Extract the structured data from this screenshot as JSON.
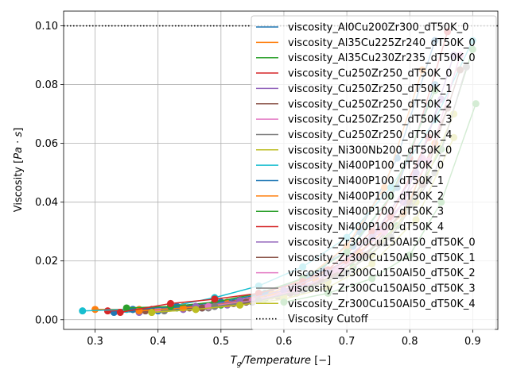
{
  "chart_data": {
    "type": "line",
    "xlabel": "T_g/Temperature [−]",
    "ylabel": "Viscosity [Pa·s]",
    "xlim": [
      0.25,
      0.94
    ],
    "ylim": [
      -0.0033,
      0.105
    ],
    "xticks": [
      "0.3",
      "0.4",
      "0.5",
      "0.6",
      "0.7",
      "0.8",
      "0.9"
    ],
    "xtick_values": [
      0.3,
      0.4,
      0.5,
      0.6,
      0.7,
      0.8,
      0.9
    ],
    "yticks": [
      "0.00",
      "0.02",
      "0.04",
      "0.06",
      "0.08",
      "0.10"
    ],
    "ytick_values": [
      0.0,
      0.02,
      0.04,
      0.06,
      0.08,
      0.1
    ],
    "grid": true,
    "legend_position": "right",
    "cutoff": {
      "name": "Viscosity Cutoff",
      "value": 0.1,
      "style": "dotted",
      "color": "#000000"
    },
    "series": [
      {
        "name": "viscosity_Al0Cu200Zr300_dT50K_0",
        "color": "#1f77b4",
        "x": [
          0.33,
          0.4,
          0.47,
          0.54,
          0.6,
          0.66,
          0.72,
          0.78,
          0.84
        ],
        "y": [
          0.0025,
          0.003,
          0.004,
          0.006,
          0.01,
          0.017,
          0.03,
          0.055,
          0.095
        ]
      },
      {
        "name": "viscosity_Al35Cu225Zr240_dT50K_0",
        "color": "#ff7f0e",
        "x": [
          0.3,
          0.37,
          0.44,
          0.51,
          0.58,
          0.64,
          0.7,
          0.76,
          0.82
        ],
        "y": [
          0.0035,
          0.0035,
          0.0045,
          0.006,
          0.009,
          0.015,
          0.025,
          0.045,
          0.085
        ]
      },
      {
        "name": "viscosity_Al35Cu230Zr235_dT50K_0",
        "color": "#2ca02c",
        "x": [
          0.36,
          0.43,
          0.5,
          0.57,
          0.64,
          0.71,
          0.78,
          0.85,
          0.9
        ],
        "y": [
          0.0035,
          0.004,
          0.005,
          0.007,
          0.011,
          0.018,
          0.032,
          0.058,
          0.092
        ]
      },
      {
        "name": "viscosity_Cu250Zr250_dT50K_0",
        "color": "#d62728",
        "x": [
          0.32,
          0.39,
          0.46,
          0.53,
          0.6,
          0.67,
          0.74,
          0.8,
          0.86
        ],
        "y": [
          0.003,
          0.0035,
          0.0045,
          0.0065,
          0.01,
          0.017,
          0.03,
          0.055,
          0.098
        ]
      },
      {
        "name": "viscosity_Cu250Zr250_dT50K_1",
        "color": "#9467bd",
        "x": [
          0.37,
          0.44,
          0.51,
          0.58,
          0.65,
          0.72,
          0.79,
          0.85
        ],
        "y": [
          0.0025,
          0.0035,
          0.005,
          0.008,
          0.013,
          0.022,
          0.04,
          0.075
        ]
      },
      {
        "name": "viscosity_Cu250Zr250_dT50K_2",
        "color": "#8c564b",
        "x": [
          0.38,
          0.45,
          0.52,
          0.59,
          0.66,
          0.73,
          0.8,
          0.86
        ],
        "y": [
          0.003,
          0.004,
          0.0055,
          0.008,
          0.013,
          0.022,
          0.04,
          0.072
        ]
      },
      {
        "name": "viscosity_Cu250Zr250_dT50K_3",
        "color": "#e377c2",
        "x": [
          0.4,
          0.47,
          0.54,
          0.61,
          0.68,
          0.75,
          0.82
        ],
        "y": [
          0.0035,
          0.0045,
          0.0065,
          0.01,
          0.017,
          0.03,
          0.055
        ]
      },
      {
        "name": "viscosity_Cu250Zr250_dT50K_4",
        "color": "#7f7f7f",
        "x": [
          0.41,
          0.48,
          0.55,
          0.62,
          0.69,
          0.76,
          0.83
        ],
        "y": [
          0.003,
          0.004,
          0.006,
          0.009,
          0.015,
          0.026,
          0.048
        ]
      },
      {
        "name": "viscosity_Ni300Nb200_dT50K_0",
        "color": "#bcbd22",
        "x": [
          0.39,
          0.46,
          0.53,
          0.6,
          0.67,
          0.74,
          0.81,
          0.87
        ],
        "y": [
          0.0025,
          0.0035,
          0.005,
          0.008,
          0.013,
          0.022,
          0.04,
          0.07
        ]
      },
      {
        "name": "viscosity_Ni400P100_dT50K_0",
        "color": "#17becf",
        "x": [
          0.28,
          0.35,
          0.42,
          0.49,
          0.56,
          0.63,
          0.7,
          0.77,
          0.84,
          0.9
        ],
        "y": [
          0.003,
          0.0035,
          0.0045,
          0.0075,
          0.0115,
          0.018,
          0.028,
          0.045,
          0.068,
          0.095
        ]
      },
      {
        "name": "viscosity_Ni400P100_dT50K_1",
        "color": "#1f77b4",
        "x": [
          0.36,
          0.43,
          0.5,
          0.57,
          0.64,
          0.71,
          0.78,
          0.84
        ],
        "y": [
          0.0035,
          0.0045,
          0.006,
          0.009,
          0.015,
          0.025,
          0.045,
          0.08
        ]
      },
      {
        "name": "viscosity_Ni400P100_dT50K_2",
        "color": "#ff7f0e",
        "x": [
          0.37,
          0.44,
          0.51,
          0.58,
          0.65,
          0.72,
          0.79,
          0.84
        ],
        "y": [
          0.003,
          0.004,
          0.0055,
          0.0085,
          0.014,
          0.023,
          0.036,
          0.06
        ]
      },
      {
        "name": "viscosity_Ni400P100_dT50K_3",
        "color": "#2ca02c",
        "x": [
          0.35,
          0.42,
          0.49,
          0.56,
          0.63,
          0.7,
          0.77,
          0.84
        ],
        "y": [
          0.004,
          0.0045,
          0.006,
          0.009,
          0.014,
          0.023,
          0.042,
          0.078
        ]
      },
      {
        "name": "viscosity_Ni400P100_dT50K_4",
        "color": "#d62728",
        "x": [
          0.34,
          0.42,
          0.49,
          0.56,
          0.63,
          0.7,
          0.77,
          0.83
        ],
        "y": [
          0.0025,
          0.0055,
          0.007,
          0.009,
          0.013,
          0.02,
          0.035,
          0.062
        ]
      },
      {
        "name": "viscosity_Zr300Cu150Al50_dT50K_0",
        "color": "#9467bd",
        "x": [
          0.46,
          0.53,
          0.6,
          0.67,
          0.74,
          0.81,
          0.87
        ],
        "y": [
          0.0045,
          0.0065,
          0.01,
          0.016,
          0.028,
          0.05,
          0.09
        ]
      },
      {
        "name": "viscosity_Zr300Cu150Al50_dT50K_1",
        "color": "#8c564b",
        "x": [
          0.47,
          0.54,
          0.61,
          0.68,
          0.75,
          0.82,
          0.88
        ],
        "y": [
          0.004,
          0.006,
          0.009,
          0.015,
          0.026,
          0.046,
          0.085
        ]
      },
      {
        "name": "viscosity_Zr300Cu150Al50_dT50K_2",
        "color": "#e377c2",
        "x": [
          0.48,
          0.55,
          0.62,
          0.69,
          0.76,
          0.83,
          0.88
        ],
        "y": [
          0.0045,
          0.0065,
          0.01,
          0.017,
          0.03,
          0.054,
          0.09
        ]
      },
      {
        "name": "viscosity_Zr300Cu150Al50_dT50K_3",
        "color": "#7f7f7f",
        "x": [
          0.49,
          0.56,
          0.63,
          0.7,
          0.77,
          0.84,
          0.89
        ],
        "y": [
          0.0045,
          0.0065,
          0.01,
          0.016,
          0.028,
          0.05,
          0.086
        ]
      },
      {
        "name": "viscosity_Zr300Cu150Al50_dT50K_4",
        "color": "#bcbd22",
        "x": [
          0.39,
          0.46,
          0.53,
          0.6,
          0.67,
          0.74,
          0.81,
          0.87
        ],
        "y": [
          0.0025,
          0.0035,
          0.005,
          0.007,
          0.011,
          0.019,
          0.034,
          0.062
        ]
      },
      {
        "name": "",
        "color": "#2ca02c",
        "x": [
          0.6,
          0.67,
          0.74,
          0.8,
          0.85,
          0.905
        ],
        "y": [
          0.006,
          0.009,
          0.014,
          0.022,
          0.04,
          0.0735
        ]
      }
    ]
  }
}
